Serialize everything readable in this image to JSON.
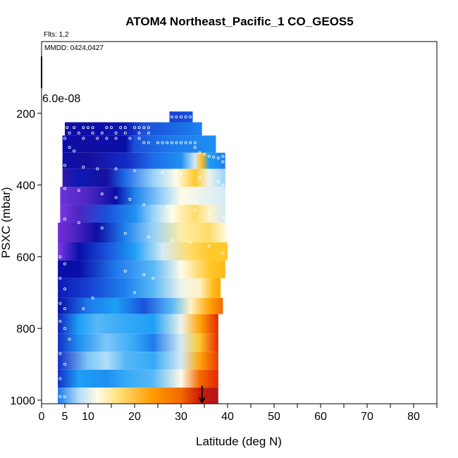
{
  "chart_data": {
    "type": "heatmap",
    "title": "ATOM4 Northeast_Pacific_1 CO_GEOS5",
    "annotations": {
      "flights": "Flts: 1,2",
      "dates": "MMDD: 0424,0427"
    },
    "xlabel": "Latitude (deg N)",
    "ylabel": "PSXC (mbar)",
    "xlim": [
      0,
      85
    ],
    "ylim": [
      1010,
      0
    ],
    "x_ticks": [
      "0",
      "5",
      "10",
      "20",
      "30",
      "40",
      "50",
      "60",
      "70",
      "80"
    ],
    "y_ticks": [
      "200",
      "400",
      "600",
      "800",
      "1000"
    ],
    "scale_label": "6.0e-08",
    "arrow_latitude": 34.5,
    "colormap": [
      "#6a1fd0",
      "#7f3de8",
      "#1a0f9a",
      "#0a0ea8",
      "#1533cc",
      "#1e6ee8",
      "#1d9ff5",
      "#6cc0f7",
      "#c5e4fa",
      "#fffbe8",
      "#ffe27a",
      "#ffc21a",
      "#ff9a00",
      "#f05a00",
      "#e01a00",
      "#b0181a"
    ],
    "bands": [
      {
        "p": [
          195,
          225
        ],
        "lat": [
          27.5,
          32.5
        ],
        "stops": [
          [
            27.5,
            0.28
          ],
          [
            32.5,
            0.3
          ]
        ]
      },
      {
        "p": [
          225,
          262
        ],
        "lat": [
          5,
          34.5
        ],
        "stops": [
          [
            5,
            0.18
          ],
          [
            12,
            0.2
          ],
          [
            18,
            0.22
          ],
          [
            22,
            0.3
          ],
          [
            27,
            0.32
          ],
          [
            34.5,
            0.36
          ]
        ]
      },
      {
        "p": [
          262,
          310
        ],
        "lat": [
          4.5,
          37.5
        ],
        "stops": [
          [
            4.5,
            0.2
          ],
          [
            10,
            0.18
          ],
          [
            18,
            0.2
          ],
          [
            20,
            0.3
          ],
          [
            28,
            0.35
          ],
          [
            37.5,
            0.38
          ]
        ]
      },
      {
        "p": [
          310,
          355
        ],
        "lat": [
          4.5,
          39.5
        ],
        "stops": [
          [
            4.5,
            0.2
          ],
          [
            10,
            0.15
          ],
          [
            18,
            0.25
          ],
          [
            24,
            0.33
          ],
          [
            30,
            0.38
          ],
          [
            33,
            0.55
          ],
          [
            34.5,
            0.75
          ],
          [
            36,
            0.4
          ],
          [
            39.5,
            0.35
          ]
        ]
      },
      {
        "p": [
          355,
          405
        ],
        "lat": [
          4.5,
          39.5
        ],
        "stops": [
          [
            4.5,
            0.12
          ],
          [
            8,
            0.22
          ],
          [
            14,
            0.15
          ],
          [
            18,
            0.33
          ],
          [
            24,
            0.5
          ],
          [
            29,
            0.6
          ],
          [
            33,
            0.72
          ],
          [
            36,
            0.58
          ],
          [
            39.5,
            0.5
          ]
        ]
      },
      {
        "p": [
          405,
          455
        ],
        "lat": [
          4,
          39.5
        ],
        "stops": [
          [
            4,
            0.08
          ],
          [
            10,
            0.1
          ],
          [
            16,
            0.2
          ],
          [
            20,
            0.36
          ],
          [
            26,
            0.5
          ],
          [
            30,
            0.6
          ],
          [
            34,
            0.58
          ],
          [
            39.5,
            0.55
          ]
        ]
      },
      {
        "p": [
          455,
          505
        ],
        "lat": [
          4,
          39.5
        ],
        "stops": [
          [
            4,
            0.05
          ],
          [
            8,
            0.1
          ],
          [
            14,
            0.3
          ],
          [
            20,
            0.38
          ],
          [
            24,
            0.5
          ],
          [
            28,
            0.6
          ],
          [
            33,
            0.68
          ],
          [
            36,
            0.62
          ],
          [
            39.5,
            0.55
          ]
        ]
      },
      {
        "p": [
          505,
          560
        ],
        "lat": [
          3.5,
          40
        ],
        "stops": [
          [
            3.5,
            0.03
          ],
          [
            7,
            0.1
          ],
          [
            12,
            0.18
          ],
          [
            18,
            0.36
          ],
          [
            24,
            0.5
          ],
          [
            30,
            0.64
          ],
          [
            36,
            0.68
          ],
          [
            40,
            0.6
          ]
        ]
      },
      {
        "p": [
          560,
          610
        ],
        "lat": [
          3.5,
          40
        ],
        "stops": [
          [
            3.5,
            0.06
          ],
          [
            8,
            0.2
          ],
          [
            14,
            0.3
          ],
          [
            20,
            0.4
          ],
          [
            26,
            0.55
          ],
          [
            32,
            0.68
          ],
          [
            36,
            0.72
          ],
          [
            40,
            0.72
          ]
        ]
      },
      {
        "p": [
          610,
          660
        ],
        "lat": [
          3.5,
          39.5
        ],
        "stops": [
          [
            3.5,
            0.2
          ],
          [
            8,
            0.2
          ],
          [
            16,
            0.35
          ],
          [
            24,
            0.45
          ],
          [
            30,
            0.6
          ],
          [
            36,
            0.72
          ],
          [
            39.5,
            0.75
          ]
        ]
      },
      {
        "p": [
          660,
          715
        ],
        "lat": [
          3.5,
          38.5
        ],
        "stops": [
          [
            3.5,
            0.22
          ],
          [
            10,
            0.28
          ],
          [
            18,
            0.36
          ],
          [
            24,
            0.45
          ],
          [
            30,
            0.58
          ],
          [
            34,
            0.62
          ],
          [
            37,
            0.75
          ],
          [
            38.5,
            0.78
          ]
        ]
      },
      {
        "p": [
          715,
          760
        ],
        "lat": [
          3.5,
          39
        ],
        "stops": [
          [
            3.5,
            0.2
          ],
          [
            10,
            0.35
          ],
          [
            16,
            0.4
          ],
          [
            22,
            0.3
          ],
          [
            28,
            0.45
          ],
          [
            32,
            0.62
          ],
          [
            36,
            0.78
          ],
          [
            39,
            0.85
          ]
        ]
      },
      {
        "p": [
          760,
          815
        ],
        "lat": [
          3.5,
          38
        ],
        "stops": [
          [
            3.5,
            0.24
          ],
          [
            8,
            0.4
          ],
          [
            12,
            0.45
          ],
          [
            18,
            0.42
          ],
          [
            24,
            0.4
          ],
          [
            30,
            0.58
          ],
          [
            34,
            0.78
          ],
          [
            38,
            0.92
          ]
        ]
      },
      {
        "p": [
          815,
          865
        ],
        "lat": [
          3.5,
          38
        ],
        "stops": [
          [
            3.5,
            0.26
          ],
          [
            8,
            0.38
          ],
          [
            14,
            0.48
          ],
          [
            20,
            0.42
          ],
          [
            24,
            0.35
          ],
          [
            30,
            0.55
          ],
          [
            34,
            0.72
          ],
          [
            38,
            0.92
          ]
        ]
      },
      {
        "p": [
          865,
          915
        ],
        "lat": [
          3.5,
          38
        ],
        "stops": [
          [
            3.5,
            0.26
          ],
          [
            10,
            0.48
          ],
          [
            14,
            0.52
          ],
          [
            18,
            0.45
          ],
          [
            24,
            0.42
          ],
          [
            30,
            0.55
          ],
          [
            34,
            0.78
          ],
          [
            38,
            0.9
          ]
        ]
      },
      {
        "p": [
          915,
          965
        ],
        "lat": [
          3.5,
          38
        ],
        "stops": [
          [
            3.5,
            0.26
          ],
          [
            8,
            0.4
          ],
          [
            14,
            0.38
          ],
          [
            18,
            0.42
          ],
          [
            24,
            0.45
          ],
          [
            30,
            0.6
          ],
          [
            34,
            0.85
          ],
          [
            38,
            0.92
          ]
        ]
      },
      {
        "p": [
          965,
          1010
        ],
        "lat": [
          3.5,
          38
        ],
        "stops": [
          [
            3.5,
            0.35
          ],
          [
            8,
            0.52
          ],
          [
            12,
            0.6
          ],
          [
            16,
            0.66
          ],
          [
            24,
            0.8
          ],
          [
            30,
            0.85
          ],
          [
            34,
            0.96
          ],
          [
            38,
            1.0
          ]
        ]
      }
    ],
    "obs": [
      [
        28,
        210
      ],
      [
        29,
        210
      ],
      [
        30,
        210
      ],
      [
        31,
        210
      ],
      [
        32,
        210
      ],
      [
        5.5,
        240
      ],
      [
        7,
        240
      ],
      [
        9,
        240
      ],
      [
        10,
        240
      ],
      [
        11,
        240
      ],
      [
        14,
        240
      ],
      [
        15,
        240
      ],
      [
        17,
        240
      ],
      [
        18,
        240
      ],
      [
        20,
        240
      ],
      [
        21,
        240
      ],
      [
        22,
        240
      ],
      [
        23,
        240
      ],
      [
        6,
        255
      ],
      [
        8,
        255
      ],
      [
        11,
        255
      ],
      [
        13,
        255
      ],
      [
        16,
        255
      ],
      [
        18,
        255
      ],
      [
        21,
        255
      ],
      [
        23,
        255
      ],
      [
        5,
        270
      ],
      [
        9,
        270
      ],
      [
        12,
        270
      ],
      [
        14,
        270
      ],
      [
        16,
        270
      ],
      [
        19,
        270
      ],
      [
        21,
        270
      ],
      [
        22,
        282
      ],
      [
        23,
        282
      ],
      [
        25,
        282
      ],
      [
        26,
        282
      ],
      [
        27,
        282
      ],
      [
        28,
        282
      ],
      [
        29,
        282
      ],
      [
        30,
        282
      ],
      [
        31,
        282
      ],
      [
        32,
        282
      ],
      [
        33,
        282
      ],
      [
        6,
        295
      ],
      [
        7,
        305
      ],
      [
        33,
        295
      ],
      [
        34,
        310
      ],
      [
        35,
        315
      ],
      [
        36,
        320
      ],
      [
        37,
        322
      ],
      [
        38,
        325
      ],
      [
        39,
        320
      ],
      [
        39,
        335
      ],
      [
        5,
        345
      ],
      [
        9,
        350
      ],
      [
        12,
        355
      ],
      [
        16,
        355
      ],
      [
        20,
        360
      ],
      [
        26,
        365
      ],
      [
        30,
        370
      ],
      [
        34,
        380
      ],
      [
        38,
        390
      ],
      [
        39,
        400
      ],
      [
        5,
        410
      ],
      [
        8,
        415
      ],
      [
        13,
        425
      ],
      [
        16,
        435
      ],
      [
        19,
        440
      ],
      [
        22,
        455
      ],
      [
        27,
        460
      ],
      [
        33,
        470
      ],
      [
        36,
        480
      ],
      [
        39,
        490
      ],
      [
        5,
        495
      ],
      [
        8,
        505
      ],
      [
        13,
        520
      ],
      [
        18,
        535
      ],
      [
        23,
        545
      ],
      [
        28,
        555
      ],
      [
        32,
        560
      ],
      [
        36,
        570
      ],
      [
        39,
        590
      ],
      [
        4,
        600
      ],
      [
        5,
        620
      ],
      [
        18,
        640
      ],
      [
        22,
        650
      ],
      [
        24,
        660
      ],
      [
        4,
        660
      ],
      [
        5,
        690
      ],
      [
        20,
        700
      ],
      [
        11,
        715
      ],
      [
        4,
        730
      ],
      [
        5,
        745
      ],
      [
        9,
        745
      ],
      [
        4,
        780
      ],
      [
        5,
        800
      ],
      [
        6,
        830
      ],
      [
        4,
        870
      ],
      [
        5,
        900
      ],
      [
        4,
        940
      ],
      [
        4,
        990
      ],
      [
        5,
        990
      ]
    ]
  }
}
